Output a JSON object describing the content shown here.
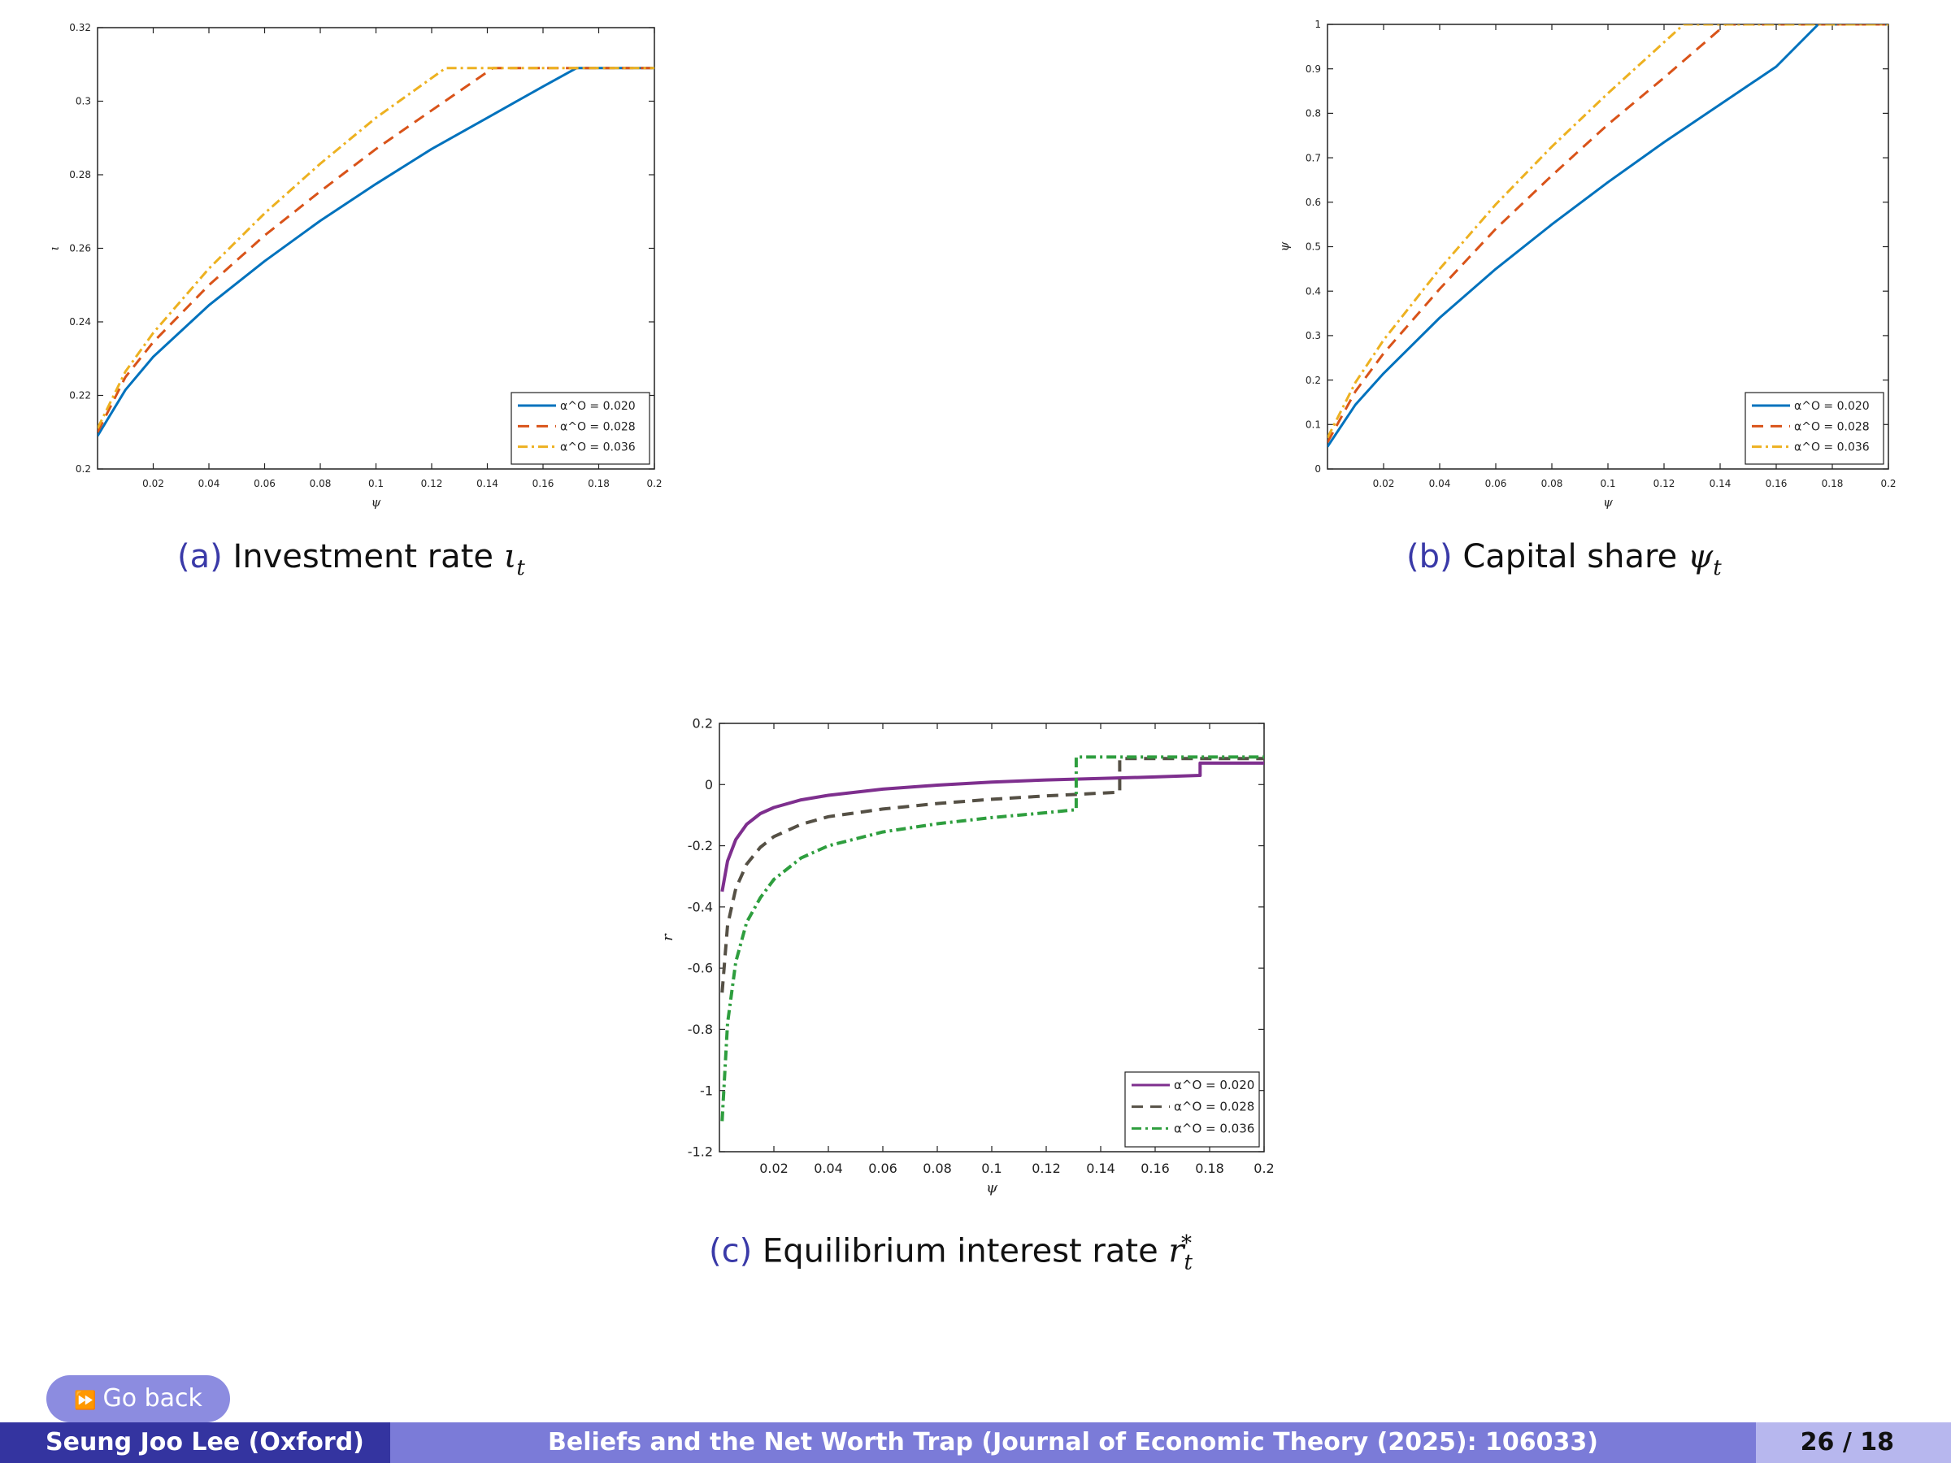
{
  "captions": {
    "a": {
      "tag": "(a)",
      "text": "Investment rate ",
      "sym": "ι",
      "sub": "t",
      "sup": ""
    },
    "b": {
      "tag": "(b)",
      "text": "Capital share ",
      "sym": "ψ",
      "sub": "t",
      "sup": ""
    },
    "c": {
      "tag": "(c)",
      "text": "Equilibrium interest rate ",
      "sym": "r",
      "sub": "t",
      "sup": "*"
    }
  },
  "nav": {
    "go_back": "Go back",
    "go_back_icon": "double-arrow-right-icon"
  },
  "footer": {
    "author": "Seung Joo Lee (Oxford)",
    "title": "Beliefs and the Net Worth Trap (Journal of Economic Theory (2025): 106033)",
    "page": "26 / 18"
  },
  "chart_data": [
    {
      "id": "a",
      "type": "line",
      "xlabel": "ψ",
      "ylabel": "ι",
      "xlim": [
        0,
        0.2
      ],
      "ylim": [
        0.2,
        0.32
      ],
      "xticks": [
        "0.02",
        "0.04",
        "0.06",
        "0.08",
        "0.1",
        "0.12",
        "0.14",
        "0.16",
        "0.18",
        "0.2"
      ],
      "xtick_values": [
        0.02,
        0.04,
        0.06,
        0.08,
        0.1,
        0.12,
        0.14,
        0.16,
        0.18,
        0.2
      ],
      "yticks": [
        "0.2",
        "0.22",
        "0.24",
        "0.26",
        "0.28",
        "0.3",
        "0.32"
      ],
      "ytick_values": [
        0.2,
        0.22,
        0.24,
        0.26,
        0.28,
        0.3,
        0.32
      ],
      "legend_position": "bottom-right",
      "series": [
        {
          "name": "α^O = 0.020",
          "color": "#0072BD",
          "style": "solid",
          "x": [
            0,
            0.01,
            0.02,
            0.04,
            0.06,
            0.08,
            0.1,
            0.12,
            0.14,
            0.16,
            0.172,
            0.2
          ],
          "y": [
            0.209,
            0.2215,
            0.2305,
            0.2445,
            0.2565,
            0.2675,
            0.2775,
            0.287,
            0.2955,
            0.304,
            0.309,
            0.309
          ]
        },
        {
          "name": "α^O = 0.028",
          "color": "#D95319",
          "style": "dashed",
          "x": [
            0,
            0.01,
            0.02,
            0.04,
            0.06,
            0.08,
            0.1,
            0.12,
            0.142,
            0.2
          ],
          "y": [
            0.21,
            0.225,
            0.2345,
            0.25,
            0.2635,
            0.2755,
            0.287,
            0.2975,
            0.309,
            0.309
          ]
        },
        {
          "name": "α^O = 0.036",
          "color": "#EDB120",
          "style": "dashdot",
          "x": [
            0,
            0.01,
            0.02,
            0.04,
            0.06,
            0.08,
            0.1,
            0.125,
            0.2
          ],
          "y": [
            0.211,
            0.2265,
            0.237,
            0.2545,
            0.2695,
            0.283,
            0.2955,
            0.309,
            0.309
          ]
        }
      ]
    },
    {
      "id": "b",
      "type": "line",
      "xlabel": "ψ",
      "ylabel": "ψ",
      "xlim": [
        0,
        0.2
      ],
      "ylim": [
        0,
        1
      ],
      "xticks": [
        "0.02",
        "0.04",
        "0.06",
        "0.08",
        "0.1",
        "0.12",
        "0.14",
        "0.16",
        "0.18",
        "0.2"
      ],
      "xtick_values": [
        0.02,
        0.04,
        0.06,
        0.08,
        0.1,
        0.12,
        0.14,
        0.16,
        0.18,
        0.2
      ],
      "yticks": [
        "0",
        "0.1",
        "0.2",
        "0.3",
        "0.4",
        "0.5",
        "0.6",
        "0.7",
        "0.8",
        "0.9",
        "1"
      ],
      "ytick_values": [
        0,
        0.1,
        0.2,
        0.3,
        0.4,
        0.5,
        0.6,
        0.7,
        0.8,
        0.9,
        1
      ],
      "legend_position": "bottom-right",
      "series": [
        {
          "name": "α^O = 0.020",
          "color": "#0072BD",
          "style": "solid",
          "x": [
            0,
            0.01,
            0.02,
            0.04,
            0.06,
            0.08,
            0.1,
            0.12,
            0.14,
            0.16,
            0.175,
            0.2
          ],
          "y": [
            0.05,
            0.145,
            0.215,
            0.34,
            0.45,
            0.55,
            0.645,
            0.735,
            0.82,
            0.905,
            1.0,
            1.0
          ]
        },
        {
          "name": "α^O = 0.028",
          "color": "#D95319",
          "style": "dashed",
          "x": [
            0,
            0.01,
            0.02,
            0.04,
            0.06,
            0.08,
            0.1,
            0.12,
            0.142,
            0.2
          ],
          "y": [
            0.06,
            0.175,
            0.26,
            0.405,
            0.54,
            0.66,
            0.775,
            0.88,
            1.0,
            1.0
          ]
        },
        {
          "name": "α^O = 0.036",
          "color": "#EDB120",
          "style": "dashdot",
          "x": [
            0,
            0.01,
            0.02,
            0.04,
            0.06,
            0.08,
            0.1,
            0.127,
            0.2
          ],
          "y": [
            0.07,
            0.195,
            0.29,
            0.45,
            0.595,
            0.725,
            0.845,
            1.0,
            1.0
          ]
        }
      ]
    },
    {
      "id": "c",
      "type": "line",
      "xlabel": "ψ",
      "ylabel": "r",
      "xlim": [
        0,
        0.2
      ],
      "ylim": [
        -1.2,
        0.2
      ],
      "xticks": [
        "0.02",
        "0.04",
        "0.06",
        "0.08",
        "0.1",
        "0.12",
        "0.14",
        "0.16",
        "0.18",
        "0.2"
      ],
      "xtick_values": [
        0.02,
        0.04,
        0.06,
        0.08,
        0.1,
        0.12,
        0.14,
        0.16,
        0.18,
        0.2
      ],
      "yticks": [
        "-1.2",
        "-1",
        "-0.8",
        "-0.6",
        "-0.4",
        "-0.2",
        "0",
        "0.2"
      ],
      "ytick_values": [
        -1.2,
        -1,
        -0.8,
        -0.6,
        -0.4,
        -0.2,
        0,
        0.2
      ],
      "legend_position": "bottom-right",
      "series": [
        {
          "name": "α^O = 0.020",
          "color": "#7E2F8E",
          "style": "solid",
          "x": [
            0.001,
            0.003,
            0.006,
            0.01,
            0.015,
            0.02,
            0.03,
            0.04,
            0.06,
            0.08,
            0.1,
            0.12,
            0.14,
            0.16,
            0.1765,
            0.1765,
            0.2
          ],
          "y": [
            -0.35,
            -0.25,
            -0.18,
            -0.13,
            -0.095,
            -0.075,
            -0.05,
            -0.035,
            -0.015,
            -0.002,
            0.008,
            0.015,
            0.02,
            0.025,
            0.03,
            0.07,
            0.07
          ]
        },
        {
          "name": "α^O = 0.028",
          "color": "#555045",
          "style": "dashed",
          "x": [
            0.001,
            0.003,
            0.006,
            0.01,
            0.015,
            0.02,
            0.03,
            0.04,
            0.06,
            0.08,
            0.1,
            0.12,
            0.147,
            0.147,
            0.2
          ],
          "y": [
            -0.68,
            -0.46,
            -0.34,
            -0.26,
            -0.205,
            -0.17,
            -0.13,
            -0.105,
            -0.08,
            -0.062,
            -0.048,
            -0.037,
            -0.025,
            0.085,
            0.085
          ]
        },
        {
          "name": "α^O = 0.036",
          "color": "#2E9E3E",
          "style": "dashdot",
          "x": [
            0.001,
            0.003,
            0.006,
            0.01,
            0.015,
            0.02,
            0.03,
            0.04,
            0.06,
            0.08,
            0.1,
            0.12,
            0.131,
            0.131,
            0.2
          ],
          "y": [
            -1.1,
            -0.78,
            -0.58,
            -0.45,
            -0.37,
            -0.31,
            -0.24,
            -0.2,
            -0.155,
            -0.128,
            -0.108,
            -0.092,
            -0.082,
            0.09,
            0.09
          ]
        }
      ]
    }
  ]
}
